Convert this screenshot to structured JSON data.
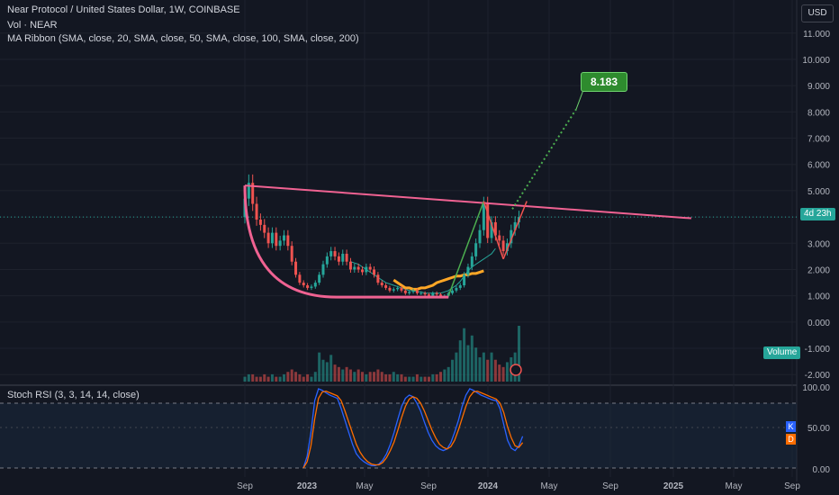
{
  "header": {
    "title": "Near Protocol / United States Dollar, 1W, COINBASE",
    "vol_label": "Vol · NEAR",
    "ma_label": "MA Ribbon (SMA, close, 20, SMA, close, 50, SMA, close, 100, SMA, close, 200)",
    "currency": "USD"
  },
  "tags": {
    "countdown": "4d 23h",
    "volume": "Volume",
    "target": "8.183",
    "stoch_k": "K",
    "stoch_d": "D"
  },
  "colors": {
    "background": "#131722",
    "up": "#26a69a",
    "down": "#ef5350",
    "pattern": "#f06292",
    "target": "#2e8b2e",
    "stoch_k": "#2962ff",
    "stoch_d": "#ff6d00"
  },
  "chart_data": [
    {
      "type": "candlestick",
      "title": "Near Protocol / United States Dollar, 1W, COINBASE",
      "y_ticks": [
        "11.000",
        "10.000",
        "9.000",
        "8.000",
        "7.000",
        "6.000",
        "5.000",
        "4.000",
        "3.000",
        "2.000",
        "1.000",
        "0.000",
        "-1.000",
        "-2.000"
      ],
      "x_ticks": [
        "Sep",
        "2023",
        "May",
        "Sep",
        "2024",
        "May",
        "Sep",
        "2025",
        "May",
        "Sep"
      ],
      "ylim": [
        -2.3,
        11.3
      ],
      "close_series": [
        4.7,
        5.3,
        4.5,
        3.9,
        3.7,
        3.4,
        3.0,
        3.4,
        2.9,
        3.1,
        3.3,
        2.9,
        2.3,
        1.8,
        1.5,
        1.4,
        1.3,
        1.35,
        1.5,
        1.8,
        2.2,
        2.5,
        2.7,
        2.5,
        2.3,
        2.6,
        2.3,
        2.0,
        2.1,
        2.0,
        1.9,
        2.1,
        2.0,
        1.8,
        1.5,
        1.4,
        1.3,
        1.2,
        1.25,
        1.3,
        1.2,
        1.1,
        1.15,
        1.2,
        1.1,
        1.1,
        1.05,
        1.0,
        1.1,
        1.05,
        1.0,
        1.0,
        1.1,
        1.2,
        1.3,
        1.4,
        1.8,
        2.1,
        2.5,
        3.0,
        3.5,
        4.5,
        3.2,
        3.8,
        3.3,
        3.1,
        2.7,
        3.0,
        3.5,
        3.8,
        4.0
      ],
      "ma_ribbon": [
        {
          "name": "SMA 20",
          "color": "#26a69a",
          "start": 27,
          "values": [
            2.3,
            2.25,
            2.2,
            2.1,
            2.0,
            1.9,
            1.8,
            1.7,
            1.6,
            1.5,
            1.45,
            1.4,
            1.35,
            1.3,
            1.25,
            1.2,
            1.2,
            1.15,
            1.15,
            1.1,
            1.1,
            1.1,
            1.1,
            1.1,
            1.15,
            1.2,
            1.3,
            1.4,
            1.55,
            1.75,
            1.95,
            2.1,
            2.2,
            2.3,
            2.4,
            2.5,
            2.6,
            2.8
          ]
        },
        {
          "name": "SMA 200",
          "color": "#ffa726",
          "start": 38,
          "values": [
            1.6,
            1.5,
            1.4,
            1.3,
            1.3,
            1.25,
            1.25,
            1.3,
            1.3,
            1.35,
            1.4,
            1.5,
            1.55,
            1.6,
            1.65,
            1.7,
            1.75,
            1.75,
            1.8,
            1.8,
            1.85,
            1.85,
            1.9,
            1.95
          ]
        }
      ],
      "annotations": {
        "target_label": "8.183",
        "resistance_line": [
          [
            0,
            5.2
          ],
          [
            114,
            3.95
          ]
        ],
        "target_projection": [
          [
            66,
            4.3
          ],
          [
            76,
            8.1
          ]
        ]
      }
    },
    {
      "type": "bar",
      "series_name": "Volume",
      "values": [
        2,
        3,
        3,
        2,
        2,
        3,
        2,
        3,
        2,
        2,
        3,
        4,
        5,
        4,
        3,
        2,
        3,
        2,
        4,
        12,
        9,
        8,
        11,
        7,
        6,
        5,
        6,
        5,
        4,
        5,
        4,
        3,
        4,
        4,
        5,
        4,
        3,
        3,
        4,
        3,
        3,
        2,
        2,
        2,
        3,
        2,
        2,
        2,
        3,
        3,
        4,
        5,
        6,
        9,
        12,
        17,
        22,
        15,
        19,
        14,
        10,
        12,
        9,
        12,
        9,
        7,
        6,
        8,
        10,
        12,
        23
      ]
    },
    {
      "type": "line",
      "title": "Stoch RSI (3, 3, 14, 14, close)",
      "y_ticks": [
        "100.00",
        "50.00",
        "0.00"
      ],
      "ylim": [
        0,
        100
      ],
      "series": [
        {
          "name": "K",
          "values": [
            0,
            15,
            45,
            85,
            100,
            98,
            95,
            92,
            90,
            88,
            75,
            60,
            45,
            30,
            18,
            12,
            8,
            5,
            3,
            3,
            5,
            10,
            18,
            30,
            45,
            62,
            78,
            88,
            92,
            90,
            82,
            72,
            58,
            45,
            35,
            28,
            24,
            22,
            24,
            32,
            45,
            60,
            78,
            92,
            100,
            98,
            95,
            92,
            90,
            88,
            86,
            85,
            75,
            55,
            35,
            25,
            22,
            28,
            40
          ]
        },
        {
          "name": "D",
          "values": [
            0,
            8,
            28,
            62,
            88,
            96,
            97,
            95,
            93,
            91,
            85,
            72,
            58,
            44,
            30,
            20,
            13,
            8,
            5,
            4,
            4,
            7,
            13,
            22,
            33,
            48,
            64,
            78,
            87,
            90,
            88,
            82,
            72,
            60,
            48,
            38,
            30,
            26,
            24,
            27,
            35,
            48,
            63,
            78,
            90,
            96,
            97,
            95,
            93,
            91,
            89,
            87,
            82,
            70,
            52,
            38,
            28,
            26,
            32
          ]
        }
      ]
    }
  ]
}
